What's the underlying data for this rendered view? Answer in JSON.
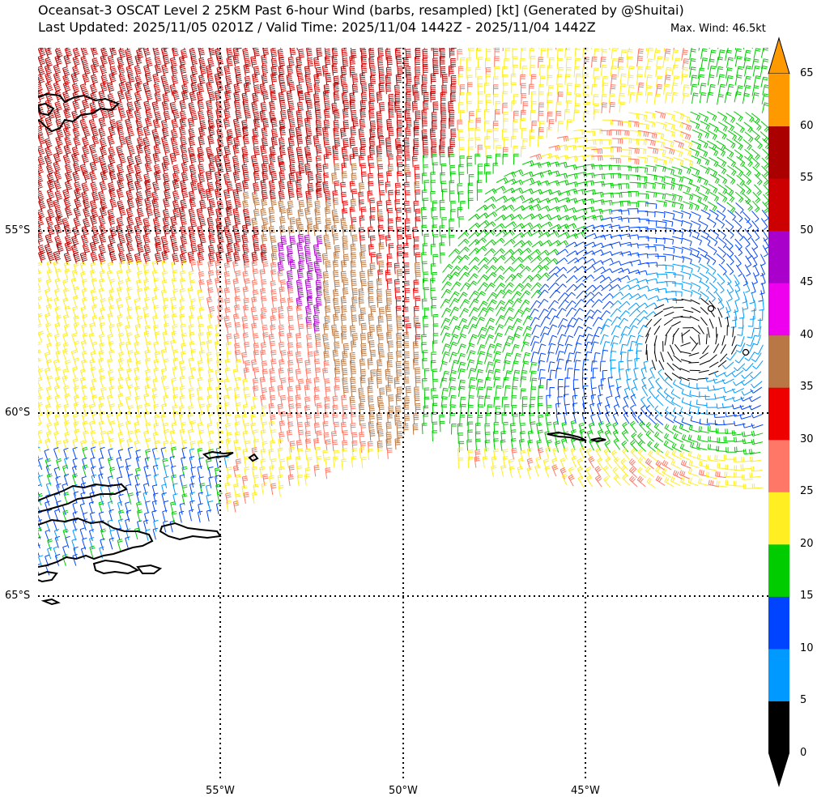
{
  "header": {
    "title_line1": "Oceansat-3 OSCAT Level 2 25KM Past 6-hour Wind (barbs, resampled) [kt] (Generated by @Shuitai)",
    "title_line2": "Last Updated: 2025/11/05 0201Z / Valid Time: 2025/11/04 1442Z - 2025/11/04 1442Z",
    "max_wind": "Max. Wind: 46.5kt"
  },
  "map": {
    "lat_labels": [
      "55°S",
      "60°S",
      "65°S"
    ],
    "lon_labels": [
      "55°W",
      "50°W",
      "45°W"
    ],
    "gridline_style": "dotted"
  },
  "colorbar": {
    "tick_labels": [
      "0",
      "5",
      "10",
      "15",
      "20",
      "25",
      "30",
      "35",
      "40",
      "45",
      "50",
      "55",
      "60",
      "65"
    ],
    "bins": [
      {
        "from": 0,
        "to": 5,
        "color": "#000000"
      },
      {
        "from": 5,
        "to": 10,
        "color": "#0099ff"
      },
      {
        "from": 10,
        "to": 15,
        "color": "#0044ff"
      },
      {
        "from": 15,
        "to": 20,
        "color": "#00cc00"
      },
      {
        "from": 20,
        "to": 25,
        "color": "#ffee22"
      },
      {
        "from": 25,
        "to": 30,
        "color": "#ff7766"
      },
      {
        "from": 30,
        "to": 35,
        "color": "#ee0000"
      },
      {
        "from": 35,
        "to": 40,
        "color": "#b87744"
      },
      {
        "from": 40,
        "to": 45,
        "color": "#ee00ee"
      },
      {
        "from": 45,
        "to": 50,
        "color": "#aa00cc"
      },
      {
        "from": 50,
        "to": 55,
        "color": "#cc0000"
      },
      {
        "from": 55,
        "to": 60,
        "color": "#aa0000"
      },
      {
        "from": 60,
        "to": 65,
        "color": "#ff9900"
      }
    ],
    "extend": "both"
  }
}
